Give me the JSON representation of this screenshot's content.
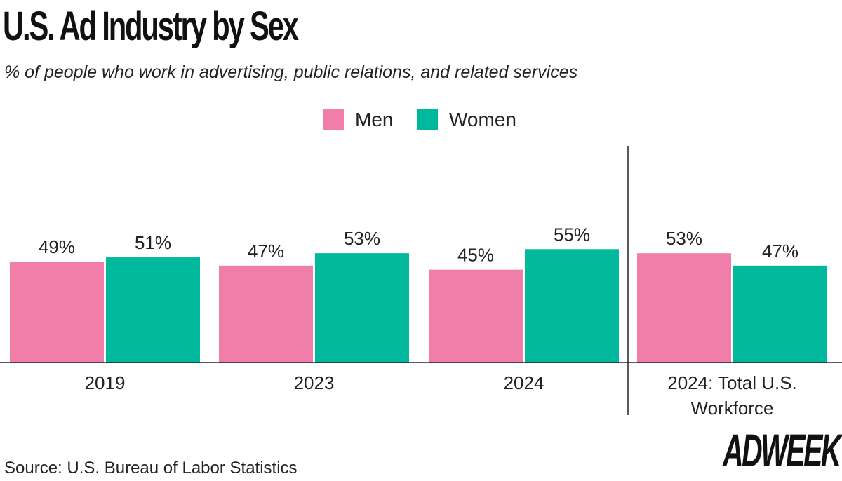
{
  "title": "U.S. Ad Industry by Sex",
  "subtitle": "% of people who work in advertising, public relations, and related services",
  "source": "Source: U.S. Bureau of Labor Statistics",
  "logo": "ADWEEK",
  "chart_data": {
    "type": "bar",
    "categories": [
      "2019",
      "2023",
      "2024",
      "2024: Total U.S. Workforce"
    ],
    "series": [
      {
        "name": "Men",
        "color": "#f07ea8",
        "values": [
          49,
          47,
          45,
          53
        ],
        "labels": [
          "49%",
          "47%",
          "45%",
          "53%"
        ]
      },
      {
        "name": "Women",
        "color": "#00b89b",
        "values": [
          51,
          53,
          55,
          47
        ],
        "labels": [
          "51%",
          "53%",
          "55%",
          "47%"
        ]
      }
    ],
    "ylim": [
      0,
      100
    ],
    "grid": false,
    "legend": "top-center",
    "divider_before_category": "2024: Total U.S. Workforce"
  }
}
